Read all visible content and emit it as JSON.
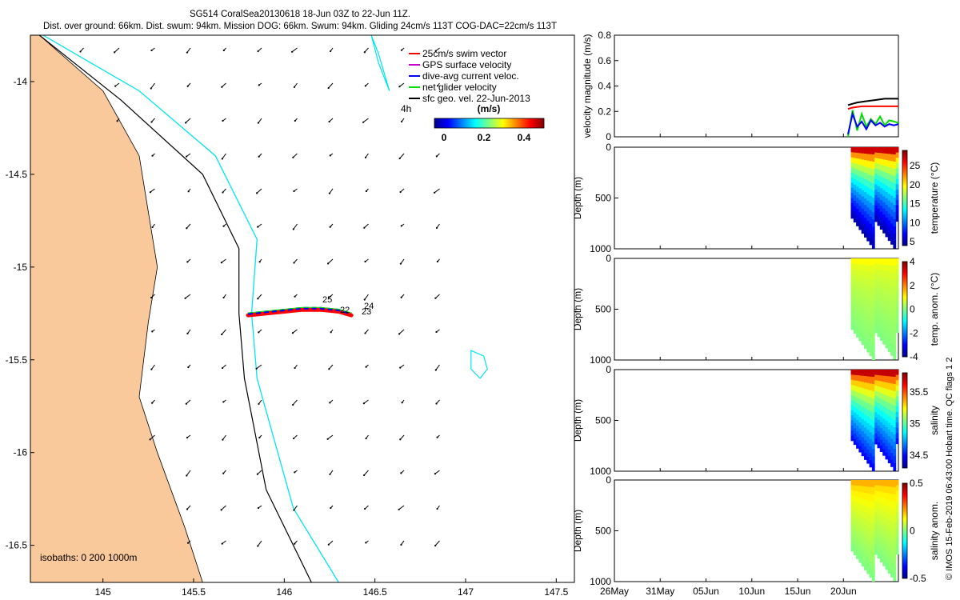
{
  "title_line1": "SG514 CoralSea20130618 18-Jun 03Z to 22-Jun 11Z.",
  "title_line2": "Dist. over ground: 66km. Dist. swum: 94km. Mission DOG: 66km. Swum: 94km. Gliding 24cm/s 113T COG-DAC=22cm/s 113T",
  "credit": "© IMOS 15-Feb-2019 06:43:00 Hobart time. QC flags 1  2",
  "isobaths_text": "isobaths: 0   200  1000m",
  "colors": {
    "land": "#F9C89B",
    "isobath_200": "#000000",
    "isobath_1000": "#00E5EE",
    "swim_vector": "#FF0000",
    "gps_velocity": "#CC00CC",
    "dac_velocity": "#0000FF",
    "net_velocity": "#00E000",
    "sfc_geo": "#000000",
    "temp_profile": "#D2691E"
  },
  "map": {
    "legend": [
      {
        "label": "25cm/s swim vector",
        "color": "#FF0000"
      },
      {
        "label": "GPS surface velocity",
        "color": "#CC00CC"
      },
      {
        "label": "dive-avg current veloc.",
        "color": "#0000FF"
      },
      {
        "label": "net glider velocity",
        "color": "#00E000"
      },
      {
        "label": "sfc geo. vel. 22-Jun-2013",
        "color": "#000000"
      }
    ],
    "colorbar_title": "(m/s)",
    "colorbar_ticks": [
      "0",
      "0.2",
      "0.4"
    ],
    "annotation_4h": "4h",
    "day_labels": [
      "25",
      "22",
      "24",
      "23"
    ]
  },
  "chart_data": [
    {
      "type": "scatter",
      "name": "map",
      "xlabel": "",
      "ylabel": "",
      "xlim": [
        144.6,
        147.6
      ],
      "ylim": [
        -16.7,
        -13.75
      ],
      "x_ticks": [
        "145",
        "145.5",
        "146",
        "146.5",
        "147",
        "147.5"
      ],
      "x_tick_values": [
        145,
        145.5,
        146,
        146.5,
        147,
        147.5
      ],
      "y_ticks": [
        "-14",
        "-14.5",
        "-15",
        "-15.5",
        "-16",
        "-16.5"
      ],
      "y_tick_values": [
        -14,
        -14.5,
        -15,
        -15.5,
        -16,
        -16.5
      ],
      "glider_track": {
        "lon": [
          145.8,
          145.9,
          146.0,
          146.1,
          146.2,
          146.3,
          146.37
        ],
        "lat": [
          -15.26,
          -15.25,
          -15.24,
          -15.23,
          -15.23,
          -15.24,
          -15.26
        ]
      },
      "coast": {
        "lon": [
          144.65,
          145.0,
          145.2,
          145.25,
          145.3,
          145.25,
          145.2,
          145.3,
          145.45,
          145.55
        ],
        "lat": [
          -13.75,
          -14.05,
          -14.4,
          -14.7,
          -15.0,
          -15.3,
          -15.7,
          -16.0,
          -16.4,
          -16.7
        ]
      },
      "isobath_200": {
        "lon": [
          144.65,
          145.1,
          145.55,
          145.75,
          145.75,
          145.78,
          145.9,
          146.15
        ],
        "lat": [
          -13.75,
          -14.1,
          -14.5,
          -14.9,
          -15.25,
          -15.6,
          -16.2,
          -16.7
        ]
      },
      "isobath_1000": {
        "lon": [
          144.67,
          145.2,
          145.62,
          145.85,
          145.82,
          145.85,
          146.05,
          146.3
        ],
        "lat": [
          -13.75,
          -14.05,
          -14.4,
          -14.85,
          -15.25,
          -15.6,
          -16.3,
          -16.7
        ]
      },
      "reef_patches": [
        {
          "lon": [
            146.48,
            146.52,
            146.55,
            146.58,
            146.52,
            146.48
          ],
          "lat": [
            -13.75,
            -13.85,
            -13.95,
            -14.05,
            -13.9,
            -13.75
          ]
        },
        {
          "lon": [
            147.03,
            147.1,
            147.12,
            147.08,
            147.03
          ],
          "lat": [
            -15.45,
            -15.48,
            -15.55,
            -15.6,
            -15.55
          ]
        }
      ]
    },
    {
      "type": "line",
      "name": "velocity",
      "ylabel": "velocity magnitude (m/s)",
      "ylim": [
        0,
        0.8
      ],
      "y_ticks": [
        "0",
        "0.2",
        "0.4",
        "0.6",
        "0.8"
      ],
      "y_tick_values": [
        0,
        0.2,
        0.4,
        0.6,
        0.8
      ],
      "x_day_range": [
        1,
        32
      ],
      "series": [
        {
          "color": "#000000",
          "x": [
            26.5,
            27.5,
            28.5,
            29.5,
            30.5,
            31.5,
            32
          ],
          "values": [
            0.25,
            0.27,
            0.28,
            0.29,
            0.3,
            0.3,
            0.3
          ]
        },
        {
          "color": "#FF0000",
          "x": [
            26.5,
            27.0,
            28.0,
            29.0,
            30.0,
            31.0,
            32
          ],
          "values": [
            0.22,
            0.23,
            0.24,
            0.24,
            0.24,
            0.24,
            0.24
          ]
        },
        {
          "color": "#00E000",
          "x": [
            26.5,
            27.0,
            27.5,
            28.0,
            28.5,
            29.0,
            29.5,
            30.0,
            30.5,
            31.0,
            31.5,
            32
          ],
          "values": [
            0.0,
            0.21,
            0.05,
            0.18,
            0.08,
            0.14,
            0.1,
            0.16,
            0.09,
            0.13,
            0.12,
            0.11
          ]
        },
        {
          "color": "#0000FF",
          "x": [
            26.5,
            27.0,
            27.5,
            28.0,
            28.5,
            29.0,
            29.5,
            30.0,
            30.5,
            31.0,
            31.5,
            32
          ],
          "values": [
            0.02,
            0.18,
            0.08,
            0.12,
            0.06,
            0.13,
            0.09,
            0.11,
            0.08,
            0.1,
            0.09,
            0.1
          ]
        }
      ]
    },
    {
      "type": "heatmap",
      "name": "temperature",
      "ylabel": "Depth (m)",
      "colorbar_label": "temperature (°C)",
      "ylim": [
        1000,
        0
      ],
      "y_ticks": [
        "0",
        "500",
        "1000"
      ],
      "y_tick_values": [
        0,
        500,
        1000
      ],
      "clim": [
        4,
        29
      ],
      "colorbar_ticks": [
        "5",
        "10",
        "15",
        "20",
        "25"
      ],
      "colorbar_tick_values": [
        5,
        10,
        15,
        20,
        25
      ],
      "profile_color_top": 27,
      "profile_color_bottom": 5
    },
    {
      "type": "heatmap",
      "name": "temp_anomaly",
      "ylabel": "Depth (m)",
      "colorbar_label": "temp. anom. (°C)",
      "ylim": [
        1000,
        0
      ],
      "y_ticks": [
        "0",
        "500",
        "1000"
      ],
      "y_tick_values": [
        0,
        500,
        1000
      ],
      "clim": [
        -4,
        4
      ],
      "colorbar_ticks": [
        "4",
        "2",
        "0",
        "-2",
        "-4"
      ],
      "colorbar_tick_values": [
        4,
        2,
        0,
        -2,
        -4
      ],
      "profile_color_top": 1,
      "profile_color_bottom": 0
    },
    {
      "type": "heatmap",
      "name": "salinity",
      "ylabel": "Depth (m)",
      "colorbar_label": "salinity",
      "ylim": [
        1000,
        0
      ],
      "y_ticks": [
        "0",
        "500",
        "1000"
      ],
      "y_tick_values": [
        0,
        500,
        1000
      ],
      "clim": [
        34.3,
        35.8
      ],
      "colorbar_ticks": [
        "35.5",
        "35",
        "34.5"
      ],
      "colorbar_tick_values": [
        35.5,
        35,
        34.5
      ],
      "profile_color_top": 35.7,
      "profile_color_bottom": 34.5
    },
    {
      "type": "heatmap",
      "name": "salinity_anomaly",
      "ylabel": "Depth (m)",
      "colorbar_label": "salinity anom.",
      "ylim": [
        1000,
        0
      ],
      "y_ticks": [
        "0",
        "500",
        "1000"
      ],
      "y_tick_values": [
        0,
        500,
        1000
      ],
      "clim": [
        -0.5,
        0.5
      ],
      "colorbar_ticks": [
        "0.5",
        "0",
        "-0.5"
      ],
      "colorbar_tick_values": [
        0.5,
        0,
        -0.5
      ],
      "profile_color_top": 0.2,
      "profile_color_bottom": 0,
      "x_ticks": [
        "26May",
        "31May",
        "05Jun",
        "10Jun",
        "15Jun",
        "20Jun"
      ],
      "x_tick_days": [
        1,
        6,
        11,
        16,
        21,
        26
      ]
    }
  ]
}
